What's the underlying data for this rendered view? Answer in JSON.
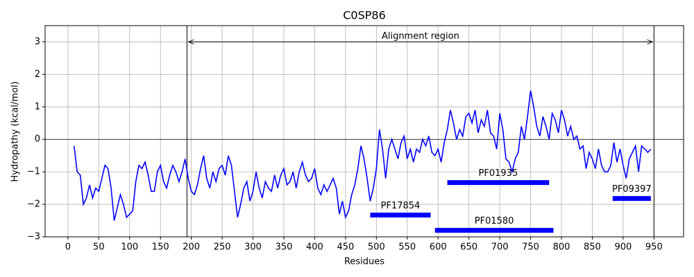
{
  "chart_data": {
    "type": "line",
    "title": "C0SP86",
    "x_label": "Residues",
    "y_label": "Hydropathy (kcal/mol)",
    "xlim": [
      -37,
      998
    ],
    "ylim": [
      -3,
      3.5
    ],
    "xticks": [
      0,
      50,
      100,
      150,
      200,
      250,
      300,
      350,
      400,
      450,
      500,
      550,
      600,
      650,
      700,
      750,
      800,
      850,
      900,
      950
    ],
    "yticks": [
      {
        "value": -3,
        "label": "−3"
      },
      {
        "value": -2,
        "label": "−2"
      },
      {
        "value": -1,
        "label": "−1"
      },
      0,
      1,
      2,
      3
    ],
    "grid": true,
    "x": [
      10,
      15,
      20,
      25,
      30,
      35,
      40,
      45,
      50,
      55,
      60,
      65,
      70,
      75,
      80,
      85,
      90,
      95,
      100,
      105,
      110,
      115,
      120,
      125,
      130,
      135,
      140,
      145,
      150,
      155,
      160,
      165,
      170,
      175,
      180,
      185,
      190,
      195,
      200,
      205,
      210,
      215,
      220,
      225,
      230,
      235,
      240,
      245,
      250,
      255,
      260,
      265,
      270,
      275,
      280,
      285,
      290,
      295,
      300,
      305,
      310,
      315,
      320,
      325,
      330,
      335,
      340,
      345,
      350,
      355,
      360,
      365,
      370,
      375,
      380,
      385,
      390,
      395,
      400,
      405,
      410,
      415,
      420,
      425,
      430,
      435,
      440,
      445,
      450,
      455,
      460,
      465,
      470,
      475,
      480,
      485,
      490,
      495,
      500,
      505,
      510,
      515,
      520,
      525,
      530,
      535,
      540,
      545,
      550,
      555,
      560,
      565,
      570,
      575,
      580,
      585,
      590,
      595,
      600,
      605,
      610,
      615,
      620,
      625,
      630,
      635,
      640,
      645,
      650,
      655,
      660,
      665,
      670,
      675,
      680,
      685,
      690,
      695,
      700,
      705,
      710,
      715,
      720,
      725,
      730,
      735,
      740,
      745,
      750,
      755,
      760,
      765,
      770,
      775,
      780,
      785,
      790,
      795,
      800,
      805,
      810,
      815,
      820,
      825,
      830,
      835,
      840,
      845,
      850,
      855,
      860,
      865,
      870,
      875,
      880,
      885,
      890,
      895,
      900,
      905,
      910,
      915,
      920,
      925,
      930,
      935,
      940,
      945
    ],
    "series": [
      {
        "color": "#0000ff",
        "values": [
          -0.2,
          -1.0,
          -1.1,
          -2.0,
          -1.8,
          -1.4,
          -1.8,
          -1.5,
          -1.6,
          -1.2,
          -0.8,
          -0.9,
          -1.5,
          -2.5,
          -2.1,
          -1.7,
          -2.0,
          -2.4,
          -2.3,
          -2.2,
          -1.3,
          -0.8,
          -0.9,
          -0.7,
          -1.1,
          -1.6,
          -1.6,
          -1.0,
          -0.8,
          -1.3,
          -1.5,
          -1.1,
          -0.8,
          -1.0,
          -1.3,
          -1.0,
          -0.6,
          -1.2,
          -1.6,
          -1.7,
          -1.4,
          -0.9,
          -0.5,
          -1.2,
          -1.5,
          -1.0,
          -1.3,
          -0.9,
          -0.8,
          -1.1,
          -0.5,
          -0.8,
          -1.6,
          -2.4,
          -2.0,
          -1.5,
          -1.3,
          -1.9,
          -1.6,
          -1.0,
          -1.5,
          -1.8,
          -1.3,
          -1.5,
          -1.6,
          -1.1,
          -1.5,
          -1.1,
          -0.9,
          -1.4,
          -1.3,
          -1.0,
          -1.5,
          -1.0,
          -0.7,
          -1.1,
          -1.3,
          -1.2,
          -0.9,
          -1.5,
          -1.7,
          -1.4,
          -1.6,
          -1.4,
          -1.2,
          -1.5,
          -2.3,
          -1.9,
          -2.4,
          -2.2,
          -1.7,
          -1.4,
          -0.9,
          -0.2,
          -0.6,
          -1.2,
          -1.9,
          -1.5,
          -0.9,
          0.3,
          -0.3,
          -1.2,
          -0.3,
          0.0,
          -0.3,
          -0.6,
          -0.1,
          0.1,
          -0.6,
          -0.3,
          -0.7,
          -0.3,
          -0.4,
          0.0,
          -0.2,
          0.1,
          -0.4,
          -0.5,
          -0.3,
          -0.7,
          -0.1,
          0.3,
          0.9,
          0.5,
          0.0,
          0.3,
          0.1,
          0.7,
          0.8,
          0.5,
          0.9,
          0.2,
          0.6,
          0.4,
          0.9,
          0.2,
          0.1,
          -0.3,
          0.8,
          0.3,
          -0.6,
          -0.7,
          -1.0,
          -0.6,
          -0.4,
          0.4,
          0.0,
          0.7,
          1.5,
          1.0,
          0.4,
          0.1,
          0.7,
          0.4,
          0.0,
          0.8,
          0.6,
          0.2,
          0.9,
          0.6,
          0.1,
          0.4,
          0.0,
          0.1,
          -0.3,
          -0.2,
          -0.9,
          -0.4,
          -0.6,
          -0.9,
          -0.3,
          -0.8,
          -1.0,
          -1.0,
          -0.8,
          -0.1,
          -0.7,
          -0.3,
          -0.8,
          -1.2,
          -0.6,
          -0.4,
          -0.2,
          -1.0,
          -0.2,
          -0.3,
          -0.4,
          -0.3
        ]
      }
    ],
    "hline": 0,
    "vlines": [
      193,
      950
    ],
    "annotation": {
      "text": "Alignment region",
      "x_start": 193,
      "x_end": 950,
      "y": 3
    },
    "domains": [
      {
        "name": "PF17854",
        "start": 490,
        "end": 588,
        "y": -2.33,
        "color": "#0000ff"
      },
      {
        "name": "PF01580",
        "start": 595,
        "end": 787,
        "y": -2.8,
        "color": "#0000ff"
      },
      {
        "name": "PF01935",
        "start": 615,
        "end": 780,
        "y": -1.33,
        "color": "#0000ff"
      },
      {
        "name": "PF09397",
        "start": 883,
        "end": 945,
        "y": -1.82,
        "color": "#0000ff"
      }
    ]
  }
}
